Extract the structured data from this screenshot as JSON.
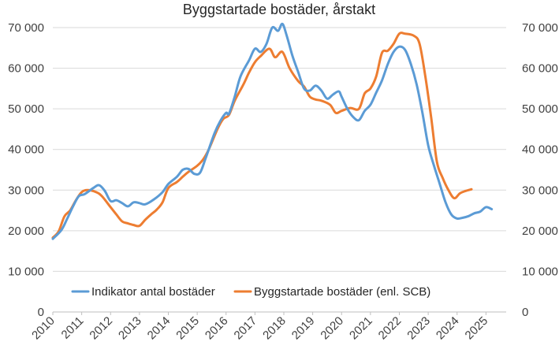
{
  "chart_data": {
    "type": "line",
    "title": "Byggstartade bostäder, årstakt",
    "xlabel": "",
    "ylabel": "",
    "xlim": [
      2010,
      2025.7
    ],
    "ylim": [
      0,
      70000
    ],
    "grid": "horizontal",
    "legend_position": "lower-left inside plot",
    "x_tick_labels": [
      "2010",
      "2011",
      "2012",
      "2013",
      "2014",
      "2015",
      "2016",
      "2017",
      "2018",
      "2019",
      "2020",
      "2021",
      "2022",
      "2023",
      "2024",
      "2025"
    ],
    "y_tick_labels_left": [
      "0",
      "10 000",
      "20 000",
      "30 000",
      "40 000",
      "50 000",
      "60 000",
      "70 000"
    ],
    "y_tick_labels_right": [
      "0",
      "10 000",
      "20 000",
      "30 000",
      "40 000",
      "50 000",
      "60 000",
      "70 000"
    ],
    "series": [
      {
        "name": "Indikator antal bostäder",
        "color": "#5B9BD5",
        "points": [
          [
            2010.0,
            18000
          ],
          [
            2010.3,
            20200
          ],
          [
            2010.5,
            23000
          ],
          [
            2010.7,
            26000
          ],
          [
            2010.9,
            28500
          ],
          [
            2011.1,
            29000
          ],
          [
            2011.4,
            30500
          ],
          [
            2011.6,
            31200
          ],
          [
            2011.8,
            29800
          ],
          [
            2012.0,
            27300
          ],
          [
            2012.2,
            27500
          ],
          [
            2012.4,
            26800
          ],
          [
            2012.6,
            26000
          ],
          [
            2012.8,
            27000
          ],
          [
            2013.0,
            26800
          ],
          [
            2013.2,
            26500
          ],
          [
            2013.5,
            27700
          ],
          [
            2013.8,
            29500
          ],
          [
            2014.0,
            31500
          ],
          [
            2014.3,
            33300
          ],
          [
            2014.5,
            35000
          ],
          [
            2014.7,
            35200
          ],
          [
            2014.9,
            34000
          ],
          [
            2015.1,
            34300
          ],
          [
            2015.3,
            38000
          ],
          [
            2015.6,
            44000
          ],
          [
            2015.8,
            47000
          ],
          [
            2016.0,
            49000
          ],
          [
            2016.1,
            48800
          ],
          [
            2016.3,
            53000
          ],
          [
            2016.5,
            58000
          ],
          [
            2016.8,
            62000
          ],
          [
            2017.0,
            64800
          ],
          [
            2017.2,
            64000
          ],
          [
            2017.4,
            66000
          ],
          [
            2017.6,
            70000
          ],
          [
            2017.8,
            69200
          ],
          [
            2017.95,
            70900
          ],
          [
            2018.1,
            68000
          ],
          [
            2018.3,
            63000
          ],
          [
            2018.5,
            59000
          ],
          [
            2018.7,
            55000
          ],
          [
            2018.9,
            54500
          ],
          [
            2019.1,
            55700
          ],
          [
            2019.3,
            54500
          ],
          [
            2019.5,
            52500
          ],
          [
            2019.7,
            53500
          ],
          [
            2019.9,
            54300
          ],
          [
            2020.0,
            53000
          ],
          [
            2020.2,
            50000
          ],
          [
            2020.4,
            48000
          ],
          [
            2020.6,
            47200
          ],
          [
            2020.8,
            49500
          ],
          [
            2021.0,
            51000
          ],
          [
            2021.2,
            54000
          ],
          [
            2021.4,
            57000
          ],
          [
            2021.6,
            61000
          ],
          [
            2021.8,
            64000
          ],
          [
            2022.0,
            65300
          ],
          [
            2022.2,
            64500
          ],
          [
            2022.4,
            61000
          ],
          [
            2022.6,
            56000
          ],
          [
            2022.8,
            49000
          ],
          [
            2023.0,
            41000
          ],
          [
            2023.2,
            36000
          ],
          [
            2023.4,
            31500
          ],
          [
            2023.6,
            27000
          ],
          [
            2023.8,
            24000
          ],
          [
            2024.0,
            23000
          ],
          [
            2024.2,
            23200
          ],
          [
            2024.4,
            23600
          ],
          [
            2024.6,
            24300
          ],
          [
            2024.8,
            24700
          ],
          [
            2025.0,
            25800
          ],
          [
            2025.2,
            25300
          ]
        ]
      },
      {
        "name": "Byggstartade bostäder (enl. SCB)",
        "color": "#ED7D31",
        "points": [
          [
            2010.0,
            18300
          ],
          [
            2010.2,
            19800
          ],
          [
            2010.4,
            23500
          ],
          [
            2010.6,
            25000
          ],
          [
            2010.8,
            27500
          ],
          [
            2011.0,
            29500
          ],
          [
            2011.2,
            30000
          ],
          [
            2011.5,
            29500
          ],
          [
            2011.7,
            28500
          ],
          [
            2012.0,
            25800
          ],
          [
            2012.2,
            24000
          ],
          [
            2012.4,
            22300
          ],
          [
            2012.6,
            21800
          ],
          [
            2012.8,
            21400
          ],
          [
            2013.0,
            21200
          ],
          [
            2013.2,
            22700
          ],
          [
            2013.4,
            24000
          ],
          [
            2013.6,
            25200
          ],
          [
            2013.8,
            27000
          ],
          [
            2014.0,
            30500
          ],
          [
            2014.3,
            32000
          ],
          [
            2014.5,
            33300
          ],
          [
            2014.7,
            34500
          ],
          [
            2015.0,
            36000
          ],
          [
            2015.2,
            37500
          ],
          [
            2015.4,
            40000
          ],
          [
            2015.7,
            45000
          ],
          [
            2015.9,
            47500
          ],
          [
            2016.1,
            48500
          ],
          [
            2016.3,
            52000
          ],
          [
            2016.6,
            56000
          ],
          [
            2016.8,
            59000
          ],
          [
            2017.0,
            61500
          ],
          [
            2017.2,
            63000
          ],
          [
            2017.5,
            64800
          ],
          [
            2017.7,
            62700
          ],
          [
            2017.95,
            64000
          ],
          [
            2018.2,
            60000
          ],
          [
            2018.5,
            56800
          ],
          [
            2018.7,
            55500
          ],
          [
            2018.9,
            53000
          ],
          [
            2019.1,
            52300
          ],
          [
            2019.3,
            52000
          ],
          [
            2019.6,
            51000
          ],
          [
            2019.8,
            49000
          ],
          [
            2020.0,
            49500
          ],
          [
            2020.3,
            50200
          ],
          [
            2020.6,
            50000
          ],
          [
            2020.8,
            53800
          ],
          [
            2021.0,
            55000
          ],
          [
            2021.2,
            58000
          ],
          [
            2021.4,
            63800
          ],
          [
            2021.6,
            64300
          ],
          [
            2021.8,
            66000
          ],
          [
            2022.0,
            68500
          ],
          [
            2022.2,
            68500
          ],
          [
            2022.5,
            68000
          ],
          [
            2022.7,
            66000
          ],
          [
            2022.9,
            58000
          ],
          [
            2023.1,
            48000
          ],
          [
            2023.3,
            37000
          ],
          [
            2023.5,
            33000
          ],
          [
            2023.7,
            30000
          ],
          [
            2023.9,
            28000
          ],
          [
            2024.1,
            29200
          ],
          [
            2024.3,
            29800
          ],
          [
            2024.5,
            30200
          ]
        ]
      }
    ]
  }
}
